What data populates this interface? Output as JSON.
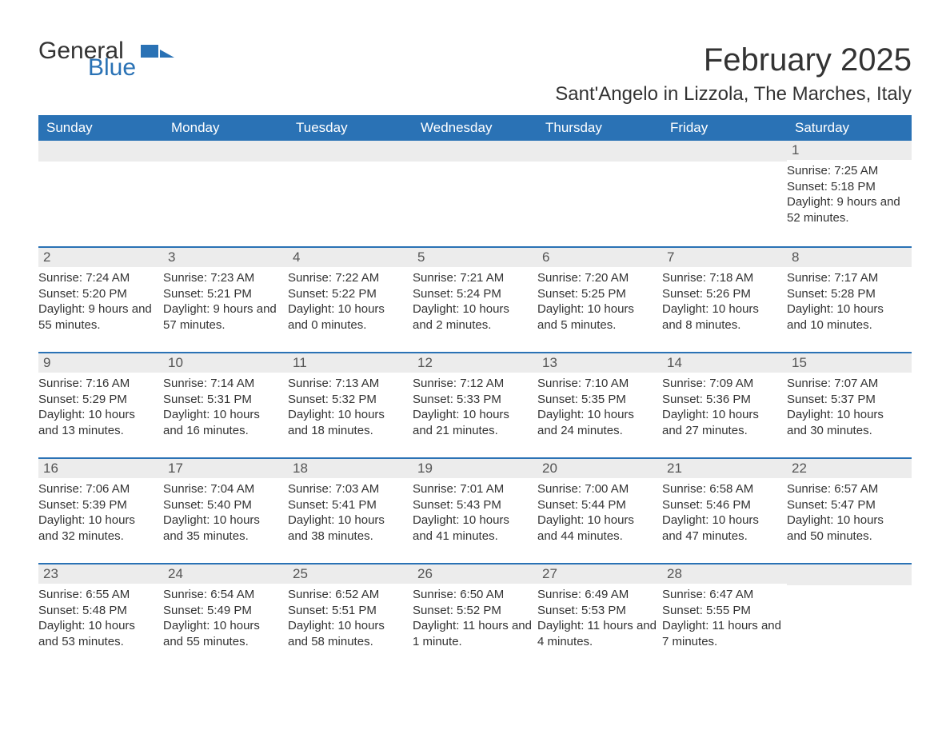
{
  "logo": {
    "part1": "General",
    "part2": "Blue",
    "shape_color": "#2a72b5"
  },
  "title": "February 2025",
  "subtitle": "Sant'Angelo in Lizzola, The Marches, Italy",
  "colors": {
    "header_bg": "#2a72b5",
    "header_text": "#ffffff",
    "daynum_bg": "#ececec",
    "row_border": "#2a72b5",
    "text": "#333333"
  },
  "day_headers": [
    "Sunday",
    "Monday",
    "Tuesday",
    "Wednesday",
    "Thursday",
    "Friday",
    "Saturday"
  ],
  "weeks": [
    [
      {
        "num": "",
        "lines": []
      },
      {
        "num": "",
        "lines": []
      },
      {
        "num": "",
        "lines": []
      },
      {
        "num": "",
        "lines": []
      },
      {
        "num": "",
        "lines": []
      },
      {
        "num": "",
        "lines": []
      },
      {
        "num": "1",
        "lines": [
          "Sunrise: 7:25 AM",
          "Sunset: 5:18 PM",
          "Daylight: 9 hours and 52 minutes."
        ]
      }
    ],
    [
      {
        "num": "2",
        "lines": [
          "Sunrise: 7:24 AM",
          "Sunset: 5:20 PM",
          "Daylight: 9 hours and 55 minutes."
        ]
      },
      {
        "num": "3",
        "lines": [
          "Sunrise: 7:23 AM",
          "Sunset: 5:21 PM",
          "Daylight: 9 hours and 57 minutes."
        ]
      },
      {
        "num": "4",
        "lines": [
          "Sunrise: 7:22 AM",
          "Sunset: 5:22 PM",
          "Daylight: 10 hours and 0 minutes."
        ]
      },
      {
        "num": "5",
        "lines": [
          "Sunrise: 7:21 AM",
          "Sunset: 5:24 PM",
          "Daylight: 10 hours and 2 minutes."
        ]
      },
      {
        "num": "6",
        "lines": [
          "Sunrise: 7:20 AM",
          "Sunset: 5:25 PM",
          "Daylight: 10 hours and 5 minutes."
        ]
      },
      {
        "num": "7",
        "lines": [
          "Sunrise: 7:18 AM",
          "Sunset: 5:26 PM",
          "Daylight: 10 hours and 8 minutes."
        ]
      },
      {
        "num": "8",
        "lines": [
          "Sunrise: 7:17 AM",
          "Sunset: 5:28 PM",
          "Daylight: 10 hours and 10 minutes."
        ]
      }
    ],
    [
      {
        "num": "9",
        "lines": [
          "Sunrise: 7:16 AM",
          "Sunset: 5:29 PM",
          "Daylight: 10 hours and 13 minutes."
        ]
      },
      {
        "num": "10",
        "lines": [
          "Sunrise: 7:14 AM",
          "Sunset: 5:31 PM",
          "Daylight: 10 hours and 16 minutes."
        ]
      },
      {
        "num": "11",
        "lines": [
          "Sunrise: 7:13 AM",
          "Sunset: 5:32 PM",
          "Daylight: 10 hours and 18 minutes."
        ]
      },
      {
        "num": "12",
        "lines": [
          "Sunrise: 7:12 AM",
          "Sunset: 5:33 PM",
          "Daylight: 10 hours and 21 minutes."
        ]
      },
      {
        "num": "13",
        "lines": [
          "Sunrise: 7:10 AM",
          "Sunset: 5:35 PM",
          "Daylight: 10 hours and 24 minutes."
        ]
      },
      {
        "num": "14",
        "lines": [
          "Sunrise: 7:09 AM",
          "Sunset: 5:36 PM",
          "Daylight: 10 hours and 27 minutes."
        ]
      },
      {
        "num": "15",
        "lines": [
          "Sunrise: 7:07 AM",
          "Sunset: 5:37 PM",
          "Daylight: 10 hours and 30 minutes."
        ]
      }
    ],
    [
      {
        "num": "16",
        "lines": [
          "Sunrise: 7:06 AM",
          "Sunset: 5:39 PM",
          "Daylight: 10 hours and 32 minutes."
        ]
      },
      {
        "num": "17",
        "lines": [
          "Sunrise: 7:04 AM",
          "Sunset: 5:40 PM",
          "Daylight: 10 hours and 35 minutes."
        ]
      },
      {
        "num": "18",
        "lines": [
          "Sunrise: 7:03 AM",
          "Sunset: 5:41 PM",
          "Daylight: 10 hours and 38 minutes."
        ]
      },
      {
        "num": "19",
        "lines": [
          "Sunrise: 7:01 AM",
          "Sunset: 5:43 PM",
          "Daylight: 10 hours and 41 minutes."
        ]
      },
      {
        "num": "20",
        "lines": [
          "Sunrise: 7:00 AM",
          "Sunset: 5:44 PM",
          "Daylight: 10 hours and 44 minutes."
        ]
      },
      {
        "num": "21",
        "lines": [
          "Sunrise: 6:58 AM",
          "Sunset: 5:46 PM",
          "Daylight: 10 hours and 47 minutes."
        ]
      },
      {
        "num": "22",
        "lines": [
          "Sunrise: 6:57 AM",
          "Sunset: 5:47 PM",
          "Daylight: 10 hours and 50 minutes."
        ]
      }
    ],
    [
      {
        "num": "23",
        "lines": [
          "Sunrise: 6:55 AM",
          "Sunset: 5:48 PM",
          "Daylight: 10 hours and 53 minutes."
        ]
      },
      {
        "num": "24",
        "lines": [
          "Sunrise: 6:54 AM",
          "Sunset: 5:49 PM",
          "Daylight: 10 hours and 55 minutes."
        ]
      },
      {
        "num": "25",
        "lines": [
          "Sunrise: 6:52 AM",
          "Sunset: 5:51 PM",
          "Daylight: 10 hours and 58 minutes."
        ]
      },
      {
        "num": "26",
        "lines": [
          "Sunrise: 6:50 AM",
          "Sunset: 5:52 PM",
          "Daylight: 11 hours and 1 minute."
        ]
      },
      {
        "num": "27",
        "lines": [
          "Sunrise: 6:49 AM",
          "Sunset: 5:53 PM",
          "Daylight: 11 hours and 4 minutes."
        ]
      },
      {
        "num": "28",
        "lines": [
          "Sunrise: 6:47 AM",
          "Sunset: 5:55 PM",
          "Daylight: 11 hours and 7 minutes."
        ]
      },
      {
        "num": "",
        "lines": []
      }
    ]
  ]
}
